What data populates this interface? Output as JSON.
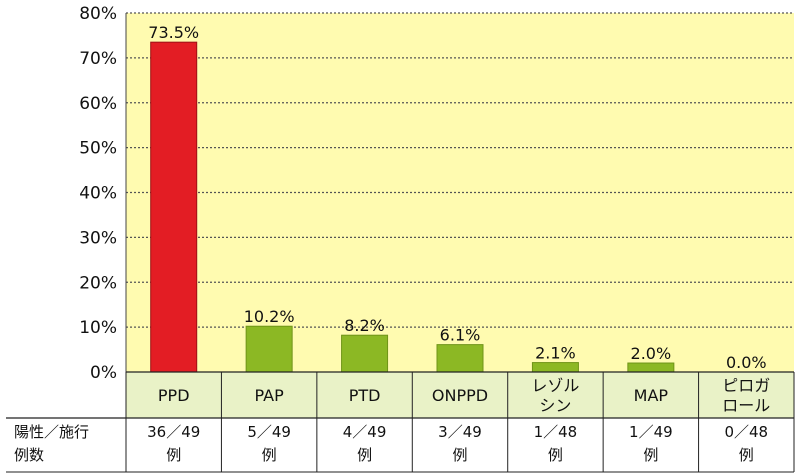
{
  "chart_data": {
    "type": "bar",
    "categories": [
      [
        "PPD"
      ],
      [
        "PAP"
      ],
      [
        "PTD"
      ],
      [
        "ONPPD"
      ],
      [
        "レゾル",
        "シン"
      ],
      [
        "MAP"
      ],
      [
        "ピロガ",
        "ロール"
      ]
    ],
    "values": [
      73.5,
      10.2,
      8.2,
      6.1,
      2.1,
      2.0,
      0.0
    ],
    "value_labels": [
      "73.5%",
      "10.2%",
      "8.2%",
      "6.1%",
      "2.1%",
      "2.0%",
      "0.0%"
    ],
    "y_ticks": [
      "0%",
      "10%",
      "20%",
      "30%",
      "40%",
      "50%",
      "60%",
      "70%",
      "80%"
    ],
    "ylim": [
      0,
      80
    ],
    "grid": true,
    "colors": {
      "plot_background": "#fffbb0",
      "category_background": "#e9f2c7",
      "highlight_bar": "#e31d24",
      "bar": "#8cb824",
      "grid": "#555555"
    },
    "table": {
      "row_label": [
        "陽性／施行",
        "例数"
      ],
      "cells": [
        [
          "36／49",
          "例"
        ],
        [
          "5／49",
          "例"
        ],
        [
          "4／49",
          "例"
        ],
        [
          "3／49",
          "例"
        ],
        [
          "1／48",
          "例"
        ],
        [
          "1／49",
          "例"
        ],
        [
          "0／48",
          "例"
        ]
      ]
    }
  }
}
